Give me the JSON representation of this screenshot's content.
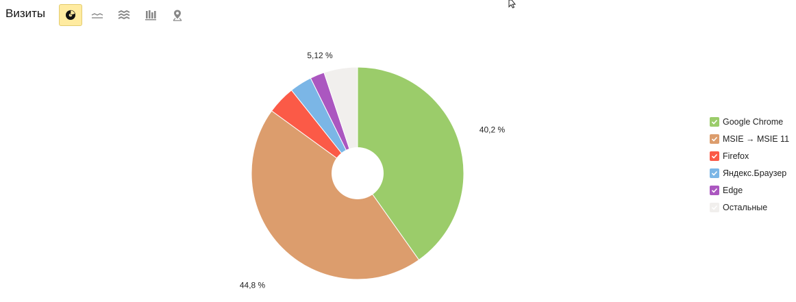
{
  "toolbar": {
    "title": "Визиты",
    "view_buttons": [
      {
        "icon": "pie-chart-icon",
        "active": true
      },
      {
        "icon": "line-chart-icon",
        "active": false
      },
      {
        "icon": "area-chart-icon",
        "active": false
      },
      {
        "icon": "bar-chart-icon",
        "active": false
      },
      {
        "icon": "map-pin-icon",
        "active": false
      }
    ]
  },
  "colors": {
    "accent_active": "#ffeba0",
    "chrome": "#9bcc6a",
    "msie": "#dc9d6d",
    "firefox": "#fb5a47",
    "yandex": "#7bb6e6",
    "edge": "#ab57c0",
    "other": "#f1efed"
  },
  "chart_data": {
    "type": "pie",
    "donut": true,
    "title": "",
    "legend_position": "right",
    "series": [
      {
        "name": "Google Chrome",
        "value": 40.2,
        "label": "40,2 %",
        "color": "#9bcc6a"
      },
      {
        "name": "MSIE → MSIE 11",
        "value": 44.8,
        "label": "44,8 %",
        "color": "#dc9d6d"
      },
      {
        "name": "Firefox",
        "value": 4.3,
        "label": "",
        "color": "#fb5a47"
      },
      {
        "name": "Яндекс.Браузер",
        "value": 3.4,
        "label": "",
        "color": "#7bb6e6"
      },
      {
        "name": "Edge",
        "value": 2.18,
        "label": "",
        "color": "#ab57c0"
      },
      {
        "name": "Остальные",
        "value": 5.12,
        "label": "5,12 %",
        "color": "#f1efed"
      }
    ]
  }
}
